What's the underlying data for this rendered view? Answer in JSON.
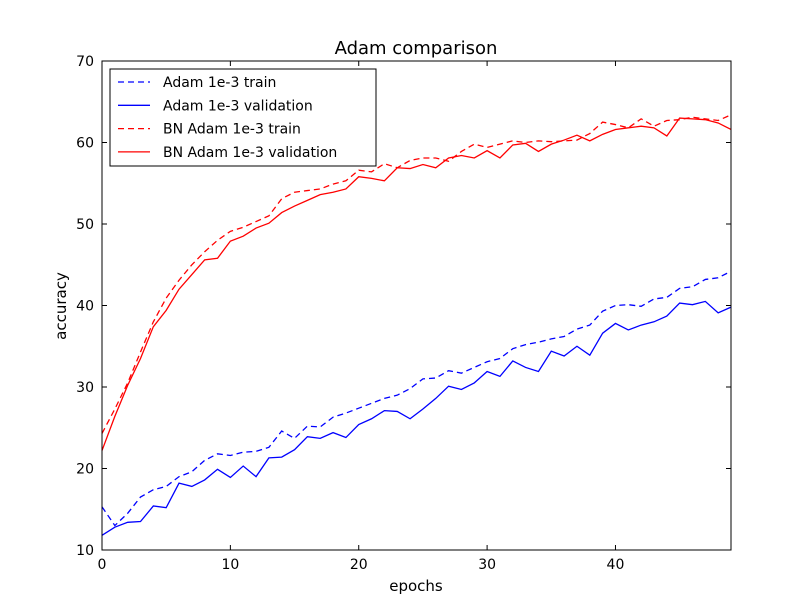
{
  "chart_data": {
    "type": "line",
    "title": "Adam comparison",
    "xlabel": "epochs",
    "ylabel": "accuracy",
    "xlim": [
      0,
      49
    ],
    "ylim": [
      10,
      70
    ],
    "x_ticks": [
      0,
      10,
      20,
      30,
      40
    ],
    "y_ticks": [
      10,
      20,
      30,
      40,
      50,
      60,
      70
    ],
    "grid": false,
    "legend_position": "top-left",
    "x": [
      0,
      1,
      2,
      3,
      4,
      5,
      6,
      7,
      8,
      9,
      10,
      11,
      12,
      13,
      14,
      15,
      16,
      17,
      18,
      19,
      20,
      21,
      22,
      23,
      24,
      25,
      26,
      27,
      28,
      29,
      30,
      31,
      32,
      33,
      34,
      35,
      36,
      37,
      38,
      39,
      40,
      41,
      42,
      43,
      44,
      45,
      46,
      47,
      48,
      49
    ],
    "series": [
      {
        "name": "Adam 1e-3 train",
        "color": "#0000ff",
        "style": "dashed",
        "values": [
          15.3,
          13.0,
          14.5,
          16.5,
          17.4,
          17.8,
          19.0,
          19.6,
          21.0,
          21.8,
          21.6,
          22.0,
          22.1,
          22.6,
          24.6,
          23.7,
          25.2,
          25.1,
          26.3,
          26.8,
          27.4,
          28.0,
          28.6,
          29.0,
          29.8,
          31.0,
          31.1,
          32.0,
          31.7,
          32.4,
          33.1,
          33.5,
          34.7,
          35.2,
          35.5,
          35.9,
          36.2,
          37.1,
          37.6,
          39.3,
          40.0,
          40.1,
          39.9,
          40.8,
          41.0,
          42.1,
          42.3,
          43.2,
          43.4,
          44.2
        ]
      },
      {
        "name": "Adam 1e-3 validation",
        "color": "#0000ff",
        "style": "solid",
        "values": [
          11.8,
          12.8,
          13.4,
          13.5,
          15.4,
          15.2,
          18.2,
          17.8,
          18.6,
          19.9,
          18.9,
          20.3,
          19.0,
          21.3,
          21.4,
          22.3,
          23.9,
          23.7,
          24.4,
          23.8,
          25.4,
          26.1,
          27.1,
          27.0,
          26.1,
          27.3,
          28.6,
          30.1,
          29.7,
          30.5,
          31.9,
          31.3,
          33.2,
          32.4,
          31.9,
          34.4,
          33.8,
          35.0,
          33.9,
          36.6,
          37.8,
          37.0,
          37.6,
          38.0,
          38.7,
          40.3,
          40.1,
          40.5,
          39.1,
          39.8
        ]
      },
      {
        "name": "BN Adam 1e-3 train",
        "color": "#ff0000",
        "style": "dashed",
        "values": [
          24.3,
          27.3,
          30.5,
          34.3,
          38.0,
          40.9,
          43.1,
          45.0,
          46.6,
          48.0,
          49.1,
          49.6,
          50.3,
          51.0,
          53.1,
          53.9,
          54.1,
          54.3,
          54.9,
          55.3,
          56.6,
          56.4,
          57.4,
          56.9,
          57.8,
          58.1,
          58.1,
          57.7,
          58.9,
          59.8,
          59.4,
          59.8,
          60.2,
          60.0,
          60.2,
          60.1,
          60.2,
          60.3,
          61.1,
          62.5,
          62.2,
          61.8,
          62.9,
          62.0,
          62.7,
          62.8,
          63.1,
          62.9,
          62.7,
          63.4
        ]
      },
      {
        "name": "BN Adam 1e-3 validation",
        "color": "#ff0000",
        "style": "solid",
        "values": [
          22.2,
          26.4,
          30.2,
          33.5,
          37.4,
          39.4,
          42.0,
          43.8,
          45.6,
          45.8,
          47.9,
          48.5,
          49.5,
          50.1,
          51.4,
          52.2,
          52.9,
          53.6,
          53.9,
          54.3,
          55.8,
          55.6,
          55.3,
          56.9,
          56.8,
          57.3,
          56.9,
          58.1,
          58.4,
          58.1,
          59.0,
          58.1,
          59.7,
          59.9,
          58.9,
          59.8,
          60.3,
          60.9,
          60.2,
          61.0,
          61.6,
          61.8,
          62.0,
          61.8,
          60.8,
          63.0,
          62.9,
          62.8,
          62.4,
          61.6
        ]
      }
    ]
  }
}
